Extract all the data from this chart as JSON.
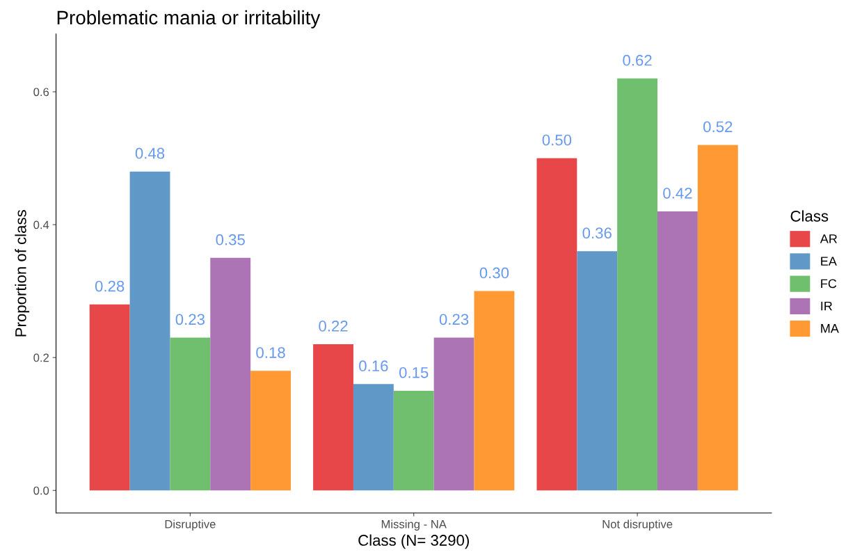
{
  "chart_data": {
    "type": "bar",
    "title": "Problematic mania or irritability",
    "xlabel": "Class (N= 3290)",
    "ylabel": "Proportion of class",
    "legend_title": "Class",
    "categories": [
      "Disruptive",
      "Missing - NA",
      "Not disruptive"
    ],
    "series": [
      {
        "name": "AR",
        "color": "#e8474a",
        "values": [
          0.28,
          0.22,
          0.5
        ],
        "value_labels": [
          "0.28",
          "0.22",
          "0.50"
        ]
      },
      {
        "name": "EA",
        "color": "#6098c8",
        "values": [
          0.48,
          0.16,
          0.36
        ],
        "value_labels": [
          "0.48",
          "0.16",
          "0.36"
        ]
      },
      {
        "name": "FC",
        "color": "#70bf6e",
        "values": [
          0.23,
          0.15,
          0.62
        ],
        "value_labels": [
          "0.23",
          "0.15",
          "0.62"
        ]
      },
      {
        "name": "IR",
        "color": "#ac74b5",
        "values": [
          0.35,
          0.23,
          0.42
        ],
        "value_labels": [
          "0.35",
          "0.23",
          "0.42"
        ]
      },
      {
        "name": "MA",
        "color": "#ff9933",
        "values": [
          0.18,
          0.3,
          0.52
        ],
        "value_labels": [
          "0.18",
          "0.30",
          "0.52"
        ]
      }
    ],
    "ylim": [
      -0.034,
      0.687
    ],
    "yticks": [
      {
        "value": 0,
        "label": "0.0"
      },
      {
        "value": 0.2,
        "label": "0.2"
      },
      {
        "value": 0.4,
        "label": "0.4"
      },
      {
        "value": 0.6,
        "label": "0.6"
      }
    ],
    "legend": "right",
    "grid": false
  }
}
